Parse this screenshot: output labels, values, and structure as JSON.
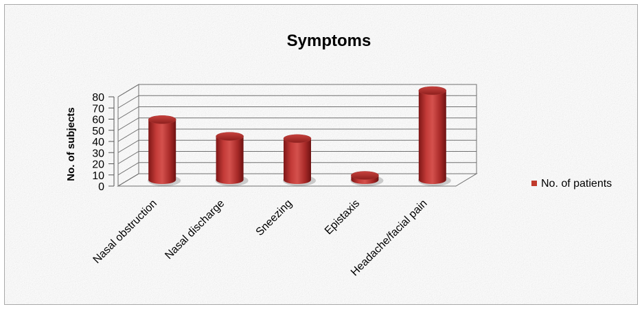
{
  "chart_data": {
    "type": "bar",
    "title": "Symptoms",
    "xlabel": "",
    "ylabel": "No. of subjects",
    "categories": [
      "Nasal obstruction",
      "Nasal discharge",
      "Sneezing",
      "Epistaxis",
      "Headache/facial pain"
    ],
    "series": [
      {
        "name": "No. of patients",
        "values": [
          54,
          39,
          37,
          4,
          80
        ],
        "color": "#c0392b"
      }
    ],
    "ylim": [
      0,
      80
    ],
    "yticks": [
      0,
      10,
      20,
      30,
      40,
      50,
      60,
      70,
      80
    ],
    "grid": true,
    "legend_position": "right"
  }
}
